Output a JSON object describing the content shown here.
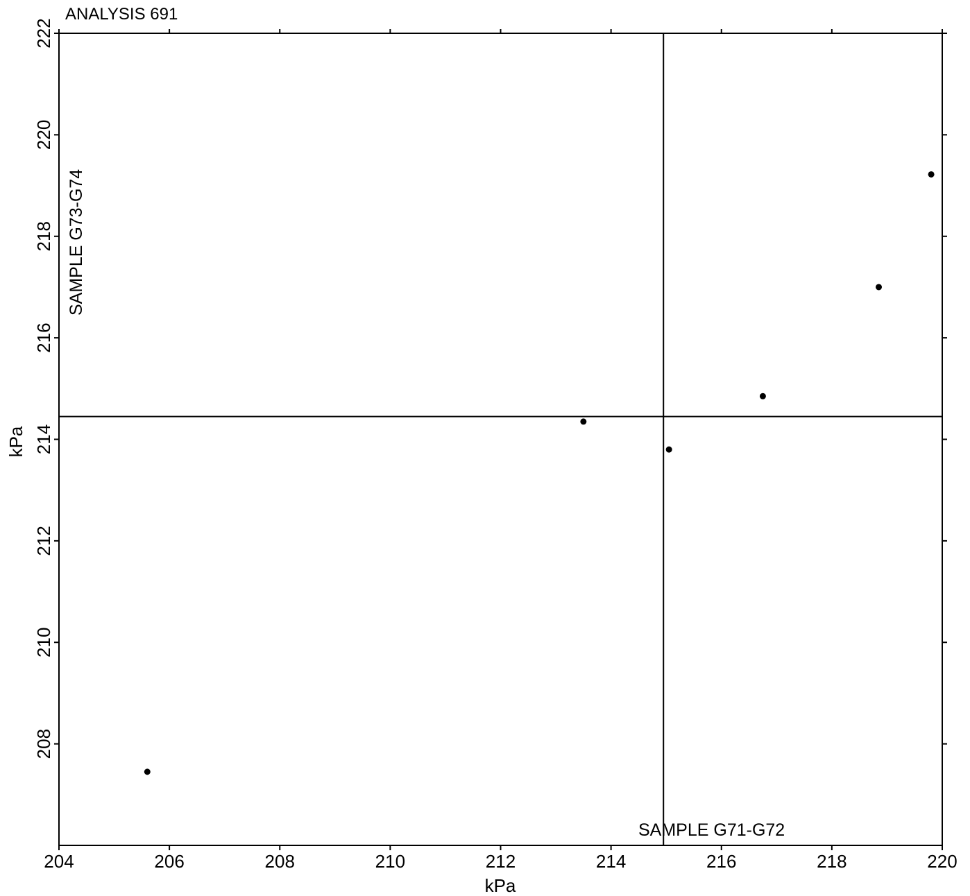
{
  "chart_data": {
    "type": "scatter",
    "title": "ANALYSIS 691",
    "xlabel": "kPa",
    "ylabel": "kPa",
    "xlim": [
      204,
      220
    ],
    "ylim": [
      206,
      222
    ],
    "x_ticks": [
      "204",
      "206",
      "208",
      "210",
      "212",
      "214",
      "216",
      "218",
      "220"
    ],
    "y_ticks": [
      "208",
      "210",
      "212",
      "214",
      "216",
      "218",
      "220",
      "222"
    ],
    "grid": false,
    "reference_lines": {
      "vertical_x": 214.95,
      "horizontal_y": 214.45
    },
    "annotations": {
      "x_sample": "SAMPLE G71-G72",
      "y_sample": "SAMPLE G73-G74"
    },
    "series": [
      {
        "x": [
          205.6,
          213.5,
          215.05,
          216.75,
          218.85,
          219.8
        ],
        "y": [
          207.45,
          214.35,
          213.8,
          214.85,
          217.0,
          219.22
        ]
      }
    ],
    "colors": {
      "axis": "#000000",
      "points": "#000000"
    }
  }
}
